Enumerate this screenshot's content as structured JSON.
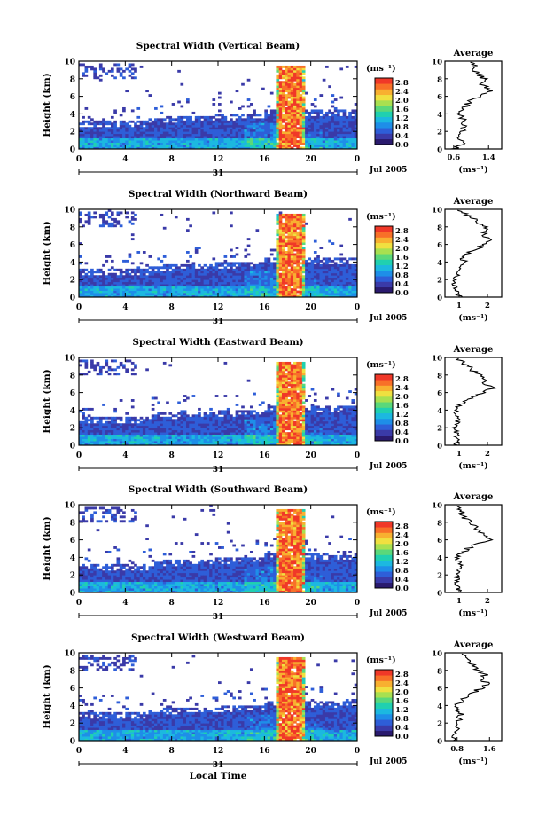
{
  "figure": {
    "xlabel": "Local Time",
    "ylabel": "Height (km)",
    "unit_label": "(ms⁻¹)",
    "date_label": "Jul 2005",
    "day_label": "31",
    "avg_title": "Average"
  },
  "chart_data": [
    {
      "type": "heatmap",
      "title": "Spectral Width (Vertical Beam)",
      "xlabel": "",
      "ylabel": "Height (km)",
      "x_ticks": [
        "0",
        "4",
        "8",
        "12",
        "16",
        "20",
        "0"
      ],
      "y_ticks": [
        "0",
        "2",
        "4",
        "6",
        "8",
        "10"
      ],
      "xlim": [
        0,
        24
      ],
      "ylim": [
        0,
        10
      ],
      "colorbar": {
        "label": "(ms⁻¹)",
        "ticks": [
          "0.0",
          "0.4",
          "0.8",
          "1.2",
          "1.6",
          "2.0",
          "2.4",
          "2.8"
        ],
        "range": [
          0,
          3.0
        ]
      },
      "average": {
        "x_ticks": [
          "0.6",
          "1.4"
        ],
        "xlim": [
          0.4,
          1.7
        ],
        "height": [
          0,
          0.5,
          1,
          1.5,
          2,
          2.5,
          3,
          3.5,
          4,
          4.5,
          5,
          5.5,
          6,
          6.5,
          7,
          7.5,
          8,
          8.5,
          9,
          9.5,
          10
        ],
        "value": [
          0.6,
          0.8,
          0.75,
          0.78,
          0.8,
          0.82,
          0.85,
          0.8,
          0.75,
          0.8,
          0.9,
          1.0,
          1.2,
          1.45,
          1.35,
          1.2,
          1.3,
          1.15,
          1.05,
          1.1,
          1.0
        ]
      }
    },
    {
      "type": "heatmap",
      "title": "Spectral Width (Northward Beam)",
      "xlabel": "",
      "ylabel": "Height (km)",
      "x_ticks": [
        "0",
        "4",
        "8",
        "12",
        "16",
        "20",
        "0"
      ],
      "y_ticks": [
        "0",
        "2",
        "4",
        "6",
        "8",
        "10"
      ],
      "xlim": [
        0,
        24
      ],
      "ylim": [
        0,
        10
      ],
      "colorbar": {
        "label": "(ms⁻¹)",
        "ticks": [
          "0.0",
          "0.4",
          "0.8",
          "1.2",
          "1.6",
          "2.0",
          "2.4",
          "2.8"
        ],
        "range": [
          0,
          3.0
        ]
      },
      "average": {
        "x_ticks": [
          "1",
          "2"
        ],
        "xlim": [
          0.5,
          2.5
        ],
        "height": [
          0,
          0.5,
          1,
          1.5,
          2,
          2.5,
          3,
          3.5,
          4,
          4.5,
          5,
          5.5,
          6,
          6.5,
          7,
          7.5,
          8,
          8.5,
          9,
          9.5,
          10
        ],
        "value": [
          1.0,
          0.9,
          0.85,
          0.8,
          0.82,
          0.9,
          1.0,
          1.05,
          1.2,
          1.1,
          1.3,
          1.6,
          1.9,
          2.1,
          1.8,
          1.9,
          2.0,
          1.6,
          1.5,
          1.2,
          1.0
        ]
      }
    },
    {
      "type": "heatmap",
      "title": "Spectral Width (Eastward Beam)",
      "xlabel": "",
      "ylabel": "Height (km)",
      "x_ticks": [
        "0",
        "4",
        "8",
        "12",
        "16",
        "20",
        "0"
      ],
      "y_ticks": [
        "0",
        "2",
        "4",
        "6",
        "8",
        "10"
      ],
      "xlim": [
        0,
        24
      ],
      "ylim": [
        0,
        10
      ],
      "colorbar": {
        "label": "(ms⁻¹)",
        "ticks": [
          "0.0",
          "0.4",
          "0.8",
          "1.2",
          "1.6",
          "2.0",
          "2.4",
          "2.8"
        ],
        "range": [
          0,
          3.0
        ]
      },
      "average": {
        "x_ticks": [
          "1",
          "2"
        ],
        "xlim": [
          0.5,
          2.5
        ],
        "height": [
          0,
          0.5,
          1,
          1.5,
          2,
          2.5,
          3,
          3.5,
          4,
          4.5,
          5,
          5.5,
          6,
          6.5,
          7,
          7.5,
          8,
          8.5,
          9,
          9.5,
          10
        ],
        "value": [
          0.9,
          0.95,
          0.9,
          0.85,
          0.85,
          0.9,
          0.95,
          0.9,
          0.85,
          1.0,
          1.2,
          1.5,
          1.8,
          2.2,
          1.9,
          2.0,
          1.7,
          1.5,
          1.3,
          1.1,
          0.8
        ]
      }
    },
    {
      "type": "heatmap",
      "title": "Spectral Width (Southward Beam)",
      "xlabel": "",
      "ylabel": "Height (km)",
      "x_ticks": [
        "0",
        "4",
        "8",
        "12",
        "16",
        "20",
        "0"
      ],
      "y_ticks": [
        "0",
        "2",
        "4",
        "6",
        "8",
        "10"
      ],
      "xlim": [
        0,
        24
      ],
      "ylim": [
        0,
        10
      ],
      "colorbar": {
        "label": "(ms⁻¹)",
        "ticks": [
          "0.0",
          "0.4",
          "0.8",
          "1.2",
          "1.6",
          "2.0",
          "2.4",
          "2.8"
        ],
        "range": [
          0,
          3.0
        ]
      },
      "average": {
        "x_ticks": [
          "1",
          "2"
        ],
        "xlim": [
          0.5,
          2.5
        ],
        "height": [
          0,
          0.5,
          1,
          1.5,
          2,
          2.5,
          3,
          3.5,
          4,
          4.5,
          5,
          5.5,
          6,
          6.5,
          7,
          7.5,
          8,
          8.5,
          9,
          9.5,
          10
        ],
        "value": [
          1.0,
          0.95,
          0.9,
          0.9,
          0.95,
          1.0,
          1.1,
          1.0,
          0.95,
          1.1,
          1.3,
          1.6,
          2.1,
          2.0,
          1.7,
          1.6,
          1.4,
          1.2,
          1.1,
          1.0,
          0.9
        ]
      }
    },
    {
      "type": "heatmap",
      "title": "Spectral Width (Westward Beam)",
      "xlabel": "Local Time",
      "ylabel": "Height (km)",
      "x_ticks": [
        "0",
        "4",
        "8",
        "12",
        "16",
        "20",
        "0"
      ],
      "y_ticks": [
        "0",
        "2",
        "4",
        "6",
        "8",
        "10"
      ],
      "xlim": [
        0,
        24
      ],
      "ylim": [
        0,
        10
      ],
      "colorbar": {
        "label": "(ms⁻¹)",
        "ticks": [
          "0.0",
          "0.4",
          "0.8",
          "1.2",
          "1.6",
          "2.0",
          "2.4",
          "2.8"
        ],
        "range": [
          0,
          3.0
        ]
      },
      "average": {
        "x_ticks": [
          "0.8",
          "1.6"
        ],
        "xlim": [
          0.5,
          1.9
        ],
        "height": [
          0,
          0.5,
          1,
          1.5,
          2,
          2.5,
          3,
          3.5,
          4,
          4.5,
          5,
          5.5,
          6,
          6.5,
          7,
          7.5,
          8,
          8.5,
          9,
          9.5,
          10
        ],
        "value": [
          0.7,
          0.75,
          0.8,
          0.78,
          0.8,
          0.85,
          0.9,
          0.85,
          0.8,
          0.9,
          1.0,
          1.2,
          1.4,
          1.55,
          1.4,
          1.5,
          1.3,
          1.2,
          1.1,
          1.0,
          0.9
        ]
      }
    }
  ],
  "colors": {
    "colormap": [
      "#2a1a6e",
      "#3a3aa8",
      "#2e5ed8",
      "#1e8ee8",
      "#1cb8e0",
      "#20d0b0",
      "#5ad87a",
      "#a8e050",
      "#f0e040",
      "#f8b030",
      "#f87028",
      "#f03828"
    ]
  }
}
